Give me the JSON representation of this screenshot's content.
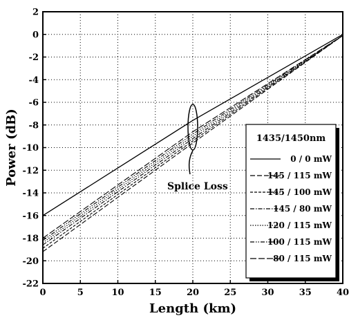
{
  "chart_data": {
    "type": "line",
    "title": "",
    "xlabel": "Length (km)",
    "ylabel": "Power (dB)",
    "xlim": [
      0,
      40
    ],
    "ylim": [
      -22,
      2
    ],
    "xticks": [
      0,
      5,
      10,
      15,
      20,
      25,
      30,
      35,
      40
    ],
    "yticks": [
      2,
      0,
      -2,
      -4,
      -6,
      -8,
      -10,
      -12,
      -14,
      -16,
      -18,
      -20,
      -22
    ],
    "grid": true,
    "legend": {
      "title": "1435/1450nm",
      "placement": "bottom-right"
    },
    "series": [
      {
        "name": "0 / 0 mW",
        "style": "solid",
        "x": [
          0,
          20,
          40
        ],
        "y": [
          -16.0,
          -7.6,
          0.0
        ]
      },
      {
        "name": "145 / 115 mW",
        "style": "dash",
        "x": [
          0,
          20,
          40
        ],
        "y": [
          -19.2,
          -9.6,
          -0.1
        ]
      },
      {
        "name": "145 / 100 mW",
        "style": "dash-short",
        "x": [
          0,
          20,
          40
        ],
        "y": [
          -18.9,
          -9.4,
          -0.1
        ]
      },
      {
        "name": "145 / 80 mW",
        "style": "dash-dot",
        "x": [
          0,
          20,
          40
        ],
        "y": [
          -18.6,
          -9.2,
          -0.1
        ]
      },
      {
        "name": "120 / 115 mW",
        "style": "dot",
        "x": [
          0,
          20,
          40
        ],
        "y": [
          -18.4,
          -9.0,
          -0.1
        ]
      },
      {
        "name": "100 / 115 mW",
        "style": "dash-dot-dot",
        "x": [
          0,
          20,
          40
        ],
        "y": [
          -18.2,
          -8.8,
          -0.1
        ]
      },
      {
        "name": "80 / 115 mW",
        "style": "dash-long",
        "x": [
          0,
          20,
          40
        ],
        "y": [
          -18.0,
          -8.6,
          -0.1
        ]
      }
    ],
    "annotations": [
      {
        "text": "Splice Loss",
        "x": 20,
        "y": -8.2
      }
    ]
  }
}
